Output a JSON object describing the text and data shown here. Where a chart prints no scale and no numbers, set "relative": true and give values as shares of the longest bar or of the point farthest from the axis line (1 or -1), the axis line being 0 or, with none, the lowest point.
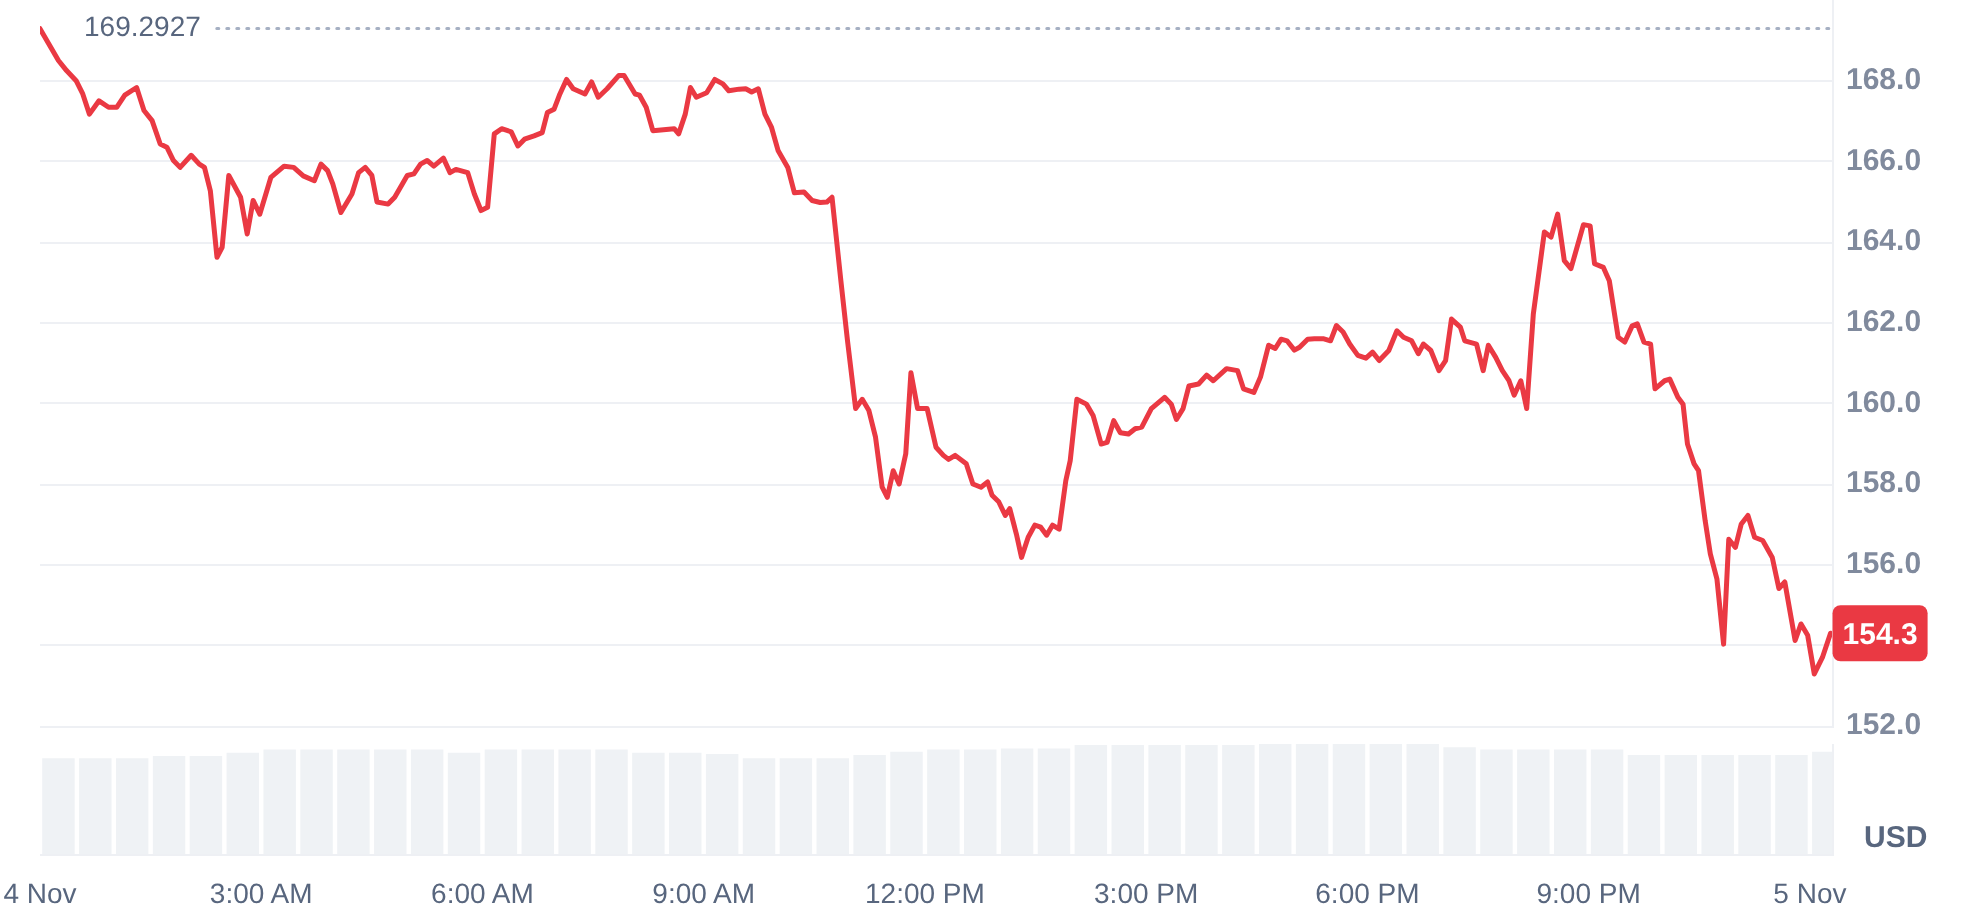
{
  "chart_data": [
    {
      "type": "line",
      "series": [
        {
          "color": "#ea3943",
          "x": [
            0,
            0.25,
            0.36,
            0.49,
            0.58,
            0.67,
            0.8,
            0.93,
            1.04,
            1.15,
            1.31,
            1.41,
            1.52,
            1.63,
            1.72,
            1.81,
            1.9,
            2.05,
            2.16,
            2.23,
            2.31,
            2.4,
            2.47,
            2.56,
            2.72,
            2.81,
            2.89,
            2.98,
            3.13,
            3.31,
            3.44,
            3.57,
            3.72,
            3.81,
            3.9,
            3.97,
            4.08,
            4.23,
            4.32,
            4.41,
            4.5,
            4.57,
            4.72,
            4.81,
            4.98,
            5.07,
            5.16,
            5.25,
            5.34,
            5.47,
            5.56,
            5.64,
            5.8,
            5.89,
            5.98,
            6.07,
            6.16,
            6.26,
            6.39,
            6.48,
            6.57,
            6.7,
            6.81,
            6.88,
            6.97,
            7.05,
            7.14,
            7.23,
            7.39,
            7.48,
            7.57,
            7.69,
            7.85,
            7.92,
            8.07,
            8.13,
            8.22,
            8.31,
            8.6,
            8.66,
            8.75,
            8.82,
            8.9,
            9.04,
            9.15,
            9.26,
            9.34,
            9.48,
            9.57,
            9.65,
            9.74,
            9.83,
            9.92,
            10.01,
            10.14,
            10.23,
            10.36,
            10.47,
            10.58,
            10.67,
            10.74,
            10.86,
            10.95,
            11.06,
            11.15,
            11.24,
            11.33,
            11.42,
            11.49,
            11.57,
            11.65,
            11.74,
            11.81,
            11.9,
            12.03,
            12.15,
            12.25,
            12.32,
            12.41,
            12.56,
            12.65,
            12.76,
            12.85,
            12.91,
            13.0,
            13.09,
            13.15,
            13.24,
            13.31,
            13.4,
            13.49,
            13.57,
            13.65,
            13.73,
            13.82,
            13.91,
            13.97,
            14.06,
            14.19,
            14.28,
            14.39,
            14.47,
            14.56,
            14.65,
            14.76,
            14.85,
            14.94,
            15.07,
            15.25,
            15.34,
            15.41,
            15.5,
            15.58,
            15.71,
            15.82,
            15.91,
            16.09,
            16.24,
            16.32,
            16.46,
            16.55,
            16.66,
            16.75,
            16.83,
            16.91,
            17.01,
            17.08,
            17.19,
            17.28,
            17.41,
            17.5,
            17.58,
            17.67,
            17.76,
            17.87,
            17.98,
            18.07,
            18.16,
            18.29,
            18.4,
            18.49,
            18.6,
            18.69,
            18.76,
            18.86,
            18.97,
            19.06,
            19.14,
            19.26,
            19.32,
            19.48,
            19.57,
            19.64,
            19.74,
            19.83,
            19.92,
            19.99,
            20.08,
            20.16,
            20.25,
            20.4,
            20.49,
            20.58,
            20.67,
            20.76,
            20.93,
            21.02,
            21.08,
            21.2,
            21.28,
            21.4,
            21.49,
            21.59,
            21.66,
            21.75,
            21.84,
            21.9,
            22.03,
            22.1,
            22.21,
            22.28,
            22.34,
            22.43,
            22.49,
            22.58,
            22.65,
            22.74,
            22.83,
            22.9,
            22.99,
            23.07,
            23.16,
            23.25,
            23.36,
            23.49,
            23.58,
            23.66,
            23.8,
            23.88,
            23.97,
            24.06,
            24.17,
            24.28
          ],
          "values": [
            169.29,
            168.5,
            168.25,
            168.0,
            167.67,
            167.17,
            167.5,
            167.34,
            167.34,
            167.64,
            167.83,
            167.26,
            167.01,
            166.43,
            166.35,
            166.02,
            165.85,
            166.15,
            165.93,
            165.85,
            165.27,
            163.62,
            163.87,
            165.65,
            165.11,
            164.2,
            165.03,
            164.69,
            165.6,
            165.88,
            165.85,
            165.64,
            165.52,
            165.93,
            165.77,
            165.44,
            164.73,
            165.19,
            165.72,
            165.85,
            165.65,
            164.99,
            164.94,
            165.11,
            165.65,
            165.69,
            165.93,
            166.02,
            165.88,
            166.08,
            165.72,
            165.8,
            165.72,
            165.19,
            164.78,
            164.86,
            166.68,
            166.81,
            166.73,
            166.38,
            166.55,
            166.63,
            166.71,
            167.21,
            167.29,
            167.67,
            168.03,
            167.8,
            167.67,
            167.97,
            167.59,
            167.8,
            168.13,
            168.13,
            167.67,
            167.64,
            167.34,
            166.76,
            166.81,
            166.68,
            167.17,
            167.83,
            167.59,
            167.7,
            168.03,
            167.92,
            167.75,
            167.79,
            167.8,
            167.72,
            167.8,
            167.17,
            166.84,
            166.26,
            165.85,
            165.22,
            165.24,
            165.03,
            164.98,
            164.99,
            165.11,
            163.04,
            161.55,
            159.87,
            160.1,
            159.82,
            159.16,
            157.92,
            157.67,
            158.33,
            158.0,
            158.75,
            160.76,
            159.87,
            159.87,
            158.91,
            158.71,
            158.61,
            158.71,
            158.5,
            158.0,
            157.92,
            158.05,
            157.72,
            157.56,
            157.22,
            157.39,
            156.76,
            156.18,
            156.68,
            156.98,
            156.93,
            156.73,
            156.98,
            156.88,
            158.08,
            158.58,
            160.1,
            159.98,
            159.7,
            158.99,
            159.03,
            159.57,
            159.27,
            159.24,
            159.37,
            159.41,
            159.87,
            160.15,
            159.98,
            159.6,
            159.87,
            160.43,
            160.48,
            160.7,
            160.56,
            160.86,
            160.81,
            160.36,
            160.27,
            160.65,
            161.44,
            161.36,
            161.59,
            161.55,
            161.32,
            161.39,
            161.59,
            161.6,
            161.6,
            161.55,
            161.93,
            161.77,
            161.47,
            161.19,
            161.12,
            161.27,
            161.06,
            161.31,
            161.8,
            161.64,
            161.55,
            161.23,
            161.47,
            161.31,
            160.81,
            161.06,
            162.09,
            161.89,
            161.55,
            161.47,
            160.81,
            161.44,
            161.14,
            160.81,
            160.56,
            160.2,
            160.56,
            159.87,
            162.22,
            164.25,
            164.12,
            164.69,
            163.54,
            163.34,
            164.43,
            164.4,
            163.46,
            163.37,
            163.04,
            161.64,
            161.52,
            161.92,
            161.97,
            161.52,
            161.47,
            160.36,
            160.56,
            160.6,
            160.15,
            159.98,
            158.99,
            158.5,
            158.33,
            157.09,
            156.27,
            155.64,
            154.03,
            156.63,
            156.43,
            157.01,
            157.22,
            156.68,
            156.6,
            156.18,
            155.41,
            155.57,
            154.12,
            154.53,
            154.25,
            153.29,
            153.7,
            154.3
          ],
          "value_labels": [
            null,
            null,
            null,
            null,
            null,
            null,
            null,
            null,
            null,
            null,
            null,
            null,
            null,
            null,
            null,
            null,
            null,
            null,
            null,
            null,
            null,
            null,
            null,
            null,
            null,
            null,
            null,
            null,
            null,
            null,
            null,
            null,
            null,
            null,
            null,
            null,
            null,
            null,
            null,
            null,
            null,
            null,
            null,
            null,
            null,
            null,
            null,
            null,
            null,
            null,
            null,
            null,
            null,
            null,
            null,
            null,
            null,
            null,
            null,
            null,
            null,
            null,
            null,
            null,
            null,
            null,
            null,
            null,
            null,
            null,
            null,
            null,
            null,
            null,
            null,
            null,
            null,
            null,
            null,
            null,
            null,
            null,
            null,
            null,
            null,
            null,
            null,
            null,
            null,
            null,
            null,
            null,
            null,
            null,
            null,
            null,
            null,
            null,
            null,
            null,
            null,
            null,
            null,
            null,
            null,
            null,
            null,
            null,
            null,
            null,
            null,
            null,
            null,
            null,
            null,
            null,
            null,
            null,
            null,
            null,
            null,
            null,
            null,
            null,
            null,
            null,
            null,
            null,
            null,
            null,
            null,
            null,
            null,
            null,
            null,
            null,
            null,
            null,
            null,
            null,
            null,
            null,
            null,
            null,
            null,
            null,
            null,
            null,
            null,
            null,
            null,
            null,
            null,
            null,
            null,
            null,
            null,
            null,
            null,
            null,
            null,
            null,
            null,
            null,
            null,
            null,
            null,
            null,
            null,
            null,
            null,
            null,
            null,
            null,
            null,
            null,
            null,
            null,
            null,
            null,
            null,
            null,
            null,
            null,
            null,
            null,
            null,
            null,
            null,
            null,
            null,
            null,
            null,
            null,
            null,
            null,
            null,
            null,
            null,
            null,
            null,
            null,
            null,
            null,
            null,
            null,
            null,
            null,
            null,
            null,
            null,
            null,
            null,
            null,
            null,
            null,
            null,
            null,
            null,
            null,
            null,
            null,
            null,
            null,
            null,
            null,
            null,
            null,
            null,
            null,
            null,
            null,
            null,
            null,
            null,
            null,
            null,
            null,
            null,
            null,
            null,
            null,
            "154.3"
          ]
        }
      ],
      "xlim": [
        0,
        24.3
      ],
      "ylim": [
        152,
        170
      ],
      "yticks": [
        {
          "value": 152,
          "label": "152.0"
        },
        {
          "value": 154,
          "label": null
        },
        {
          "value": 156,
          "label": "156.0"
        },
        {
          "value": 158,
          "label": "158.0"
        },
        {
          "value": 160,
          "label": "160.0"
        },
        {
          "value": 162,
          "label": "162.0"
        },
        {
          "value": 164,
          "label": "164.0"
        },
        {
          "value": 166,
          "label": "166.0"
        },
        {
          "value": 168,
          "label": "168.0"
        }
      ],
      "ref_lines": [
        {
          "axis": "y",
          "value": 169.2927,
          "label": "169.2927",
          "line_style": "dotted",
          "color": "#a6b0c3"
        }
      ],
      "grid": "y",
      "marker": "none",
      "tick_labels": "y"
    },
    {
      "type": "bar",
      "relative": true,
      "series": [
        {
          "color": "#eff2f5",
          "x": [
            0.25,
            0.75,
            1.25,
            1.75,
            2.25,
            2.75,
            3.25,
            3.75,
            4.25,
            4.75,
            5.25,
            5.75,
            6.25,
            6.75,
            7.25,
            7.75,
            8.25,
            8.75,
            9.25,
            9.75,
            10.25,
            10.75,
            11.25,
            11.75,
            12.25,
            12.75,
            13.25,
            13.75,
            14.25,
            14.75,
            15.25,
            15.75,
            16.25,
            16.75,
            17.25,
            17.75,
            18.25,
            18.75,
            19.25,
            19.75,
            20.25,
            20.75,
            21.25,
            21.75,
            22.25,
            22.75,
            23.25,
            23.75,
            24.25
          ],
          "values": [
            0.87,
            0.87,
            0.87,
            0.89,
            0.89,
            0.92,
            0.95,
            0.95,
            0.95,
            0.95,
            0.95,
            0.92,
            0.95,
            0.95,
            0.95,
            0.95,
            0.92,
            0.92,
            0.91,
            0.87,
            0.87,
            0.87,
            0.9,
            0.93,
            0.95,
            0.95,
            0.96,
            0.96,
            0.99,
            0.99,
            0.99,
            0.99,
            0.99,
            1,
            1,
            1,
            1,
            1,
            0.97,
            0.95,
            0.95,
            0.95,
            0.95,
            0.9,
            0.9,
            0.9,
            0.9,
            0.9,
            0.93
          ]
        }
      ],
      "xlim": [
        0,
        24.3
      ],
      "xticks": [
        {
          "value": 0,
          "label": "4 Nov"
        },
        {
          "value": 3,
          "label": "3:00 AM"
        },
        {
          "value": 6,
          "label": "6:00 AM"
        },
        {
          "value": 9,
          "label": "9:00 AM"
        },
        {
          "value": 12,
          "label": "12:00 PM"
        },
        {
          "value": 15,
          "label": "3:00 PM"
        },
        {
          "value": 18,
          "label": "6:00 PM"
        },
        {
          "value": 21,
          "label": "9:00 PM"
        },
        {
          "value": 24,
          "label": "5 Nov"
        }
      ],
      "ylabel": "USD",
      "tick_labels": "x"
    }
  ]
}
